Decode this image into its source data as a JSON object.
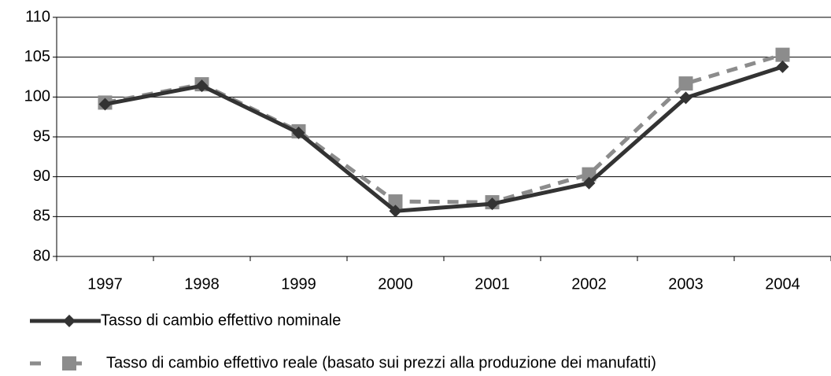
{
  "chart_data": {
    "type": "line",
    "categories": [
      "1997",
      "1998",
      "1999",
      "2000",
      "2001",
      "2002",
      "2003",
      "2004"
    ],
    "series": [
      {
        "name": "Tasso di cambio effettivo nominale",
        "color": "#333333",
        "line_style": "solid",
        "marker": "diamond",
        "values": [
          99.1,
          101.4,
          95.5,
          85.7,
          86.6,
          89.2,
          99.9,
          103.8
        ]
      },
      {
        "name": "Tasso di cambio effettivo reale (basato sui prezzi alla produzione dei manufatti)",
        "color": "#8c8c8c",
        "line_style": "dashed",
        "marker": "square",
        "values": [
          99.3,
          101.6,
          95.7,
          86.9,
          86.8,
          90.3,
          101.7,
          105.3
        ]
      }
    ],
    "ylim": [
      80,
      110
    ],
    "yticks": [
      80,
      85,
      90,
      95,
      100,
      105,
      110
    ],
    "grid": true
  }
}
